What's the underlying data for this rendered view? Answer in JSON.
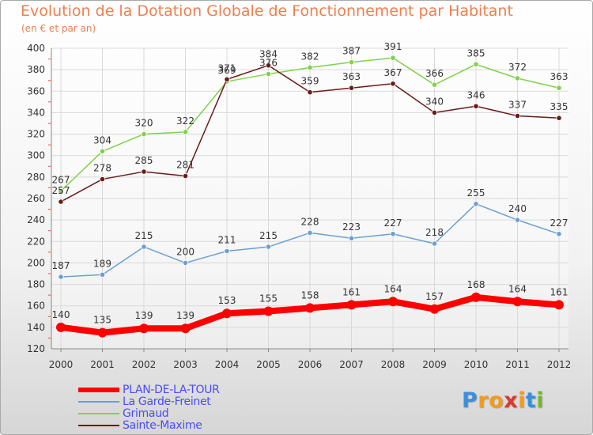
{
  "title": "Evolution de la Dotation Globale de Fonctionnement par Habitant",
  "subtitle": "(en € et par an)",
  "logo": {
    "letters": [
      "P",
      "r",
      "o",
      "x",
      "i",
      "t",
      "i"
    ],
    "colors": [
      "#3b8fd8",
      "#f29b1d",
      "#f29b1d",
      "#d9392f",
      "#f29b1d",
      "#3b8fd8",
      "#74b72e"
    ]
  },
  "chart_data": {
    "type": "line",
    "categories": [
      "2000",
      "2001",
      "2002",
      "2003",
      "2004",
      "2005",
      "2006",
      "2007",
      "2008",
      "2009",
      "2010",
      "2011",
      "2012"
    ],
    "ylim": [
      120,
      400
    ],
    "yticks": [
      "120",
      "140",
      "160",
      "180",
      "200",
      "220",
      "240",
      "260",
      "280",
      "300",
      "320",
      "340",
      "360",
      "380",
      "400"
    ],
    "grid": true,
    "legend_position": "bottom-left",
    "series": [
      {
        "name": "PLAN-DE-LA-TOUR",
        "color": "#ff0000",
        "values": [
          140,
          135,
          139,
          139,
          153,
          155,
          158,
          161,
          164,
          157,
          168,
          164,
          161
        ]
      },
      {
        "name": "La Garde-Freinet",
        "color": "#6b9fd4",
        "values": [
          187,
          189,
          215,
          200,
          211,
          215,
          228,
          223,
          227,
          218,
          255,
          240,
          227
        ]
      },
      {
        "name": "Grimaud",
        "color": "#7fd24a",
        "values": [
          267,
          304,
          320,
          322,
          369,
          376,
          382,
          387,
          391,
          366,
          385,
          372,
          363
        ]
      },
      {
        "name": "Sainte-Maxime",
        "color": "#6b1a1a",
        "values": [
          257,
          278,
          285,
          281,
          371,
          384,
          359,
          363,
          367,
          340,
          346,
          337,
          335
        ]
      }
    ]
  }
}
